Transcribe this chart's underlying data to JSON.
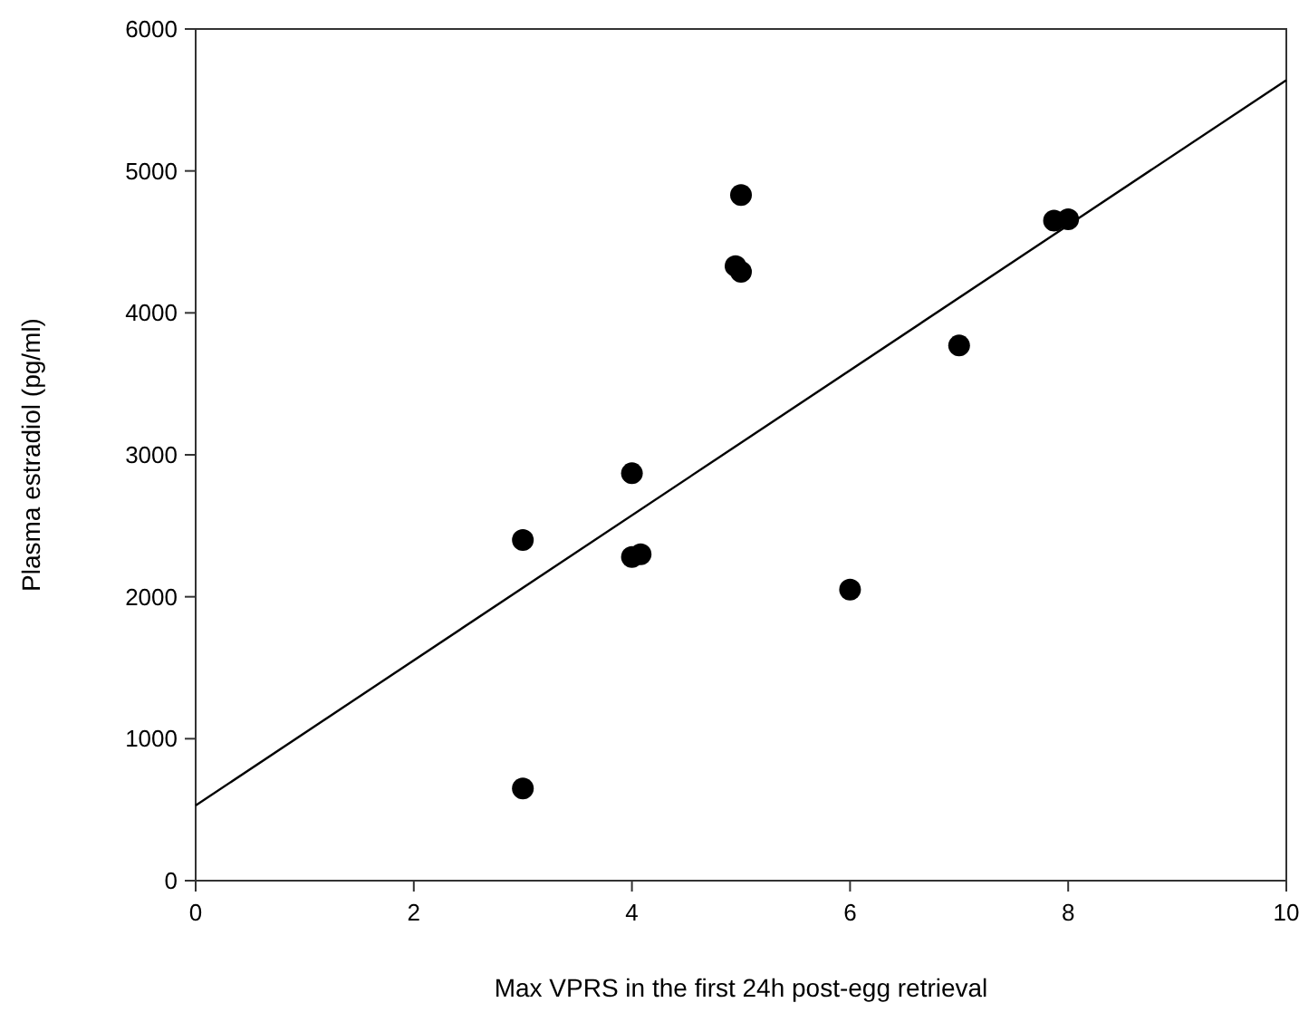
{
  "chart_data": {
    "type": "scatter",
    "xlabel": "Max VPRS in the first 24h post-egg retrieval",
    "ylabel": "Plasma estradiol (pg/ml)",
    "xlim": [
      0,
      10
    ],
    "xticks": [
      0,
      2,
      4,
      6,
      8,
      10
    ],
    "ylim": [
      0,
      6000
    ],
    "yticks": [
      0,
      1000,
      2000,
      3000,
      4000,
      5000,
      6000
    ],
    "grid": false,
    "series": [
      {
        "color": "#000000",
        "marker": "circle",
        "x": [
          3,
          3,
          4,
          4,
          4.08,
          5,
          4.95,
          5,
          6,
          7,
          7.87,
          8
        ],
        "values": [
          2400,
          650,
          2870,
          2280,
          2300,
          4830,
          4330,
          4290,
          2050,
          3770,
          4650,
          4660
        ]
      },
      {
        "type": "line",
        "color": "#000000",
        "line_style": "solid",
        "x": [
          0,
          10
        ],
        "values": [
          530,
          5640
        ]
      }
    ]
  }
}
